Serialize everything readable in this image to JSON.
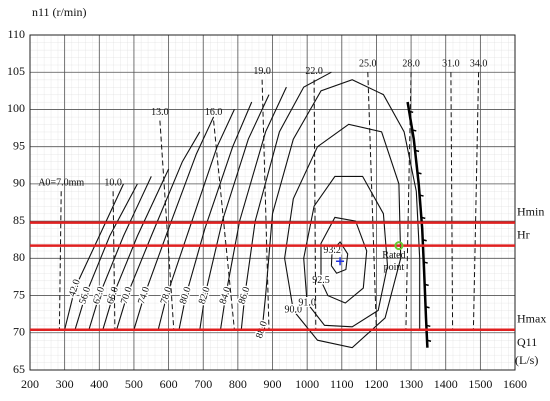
{
  "chart_data": {
    "type": "hill",
    "y_label": "n11 (r/min)",
    "x_label": [
      "Q11",
      "(L/s)"
    ],
    "xlim": [
      200,
      1600
    ],
    "xticks": [
      200,
      300,
      400,
      500,
      600,
      700,
      800,
      900,
      1000,
      1100,
      1200,
      1300,
      1400,
      1500,
      1600
    ],
    "ylim": [
      65,
      110
    ],
    "yticks": [
      65,
      70,
      75,
      80,
      85,
      90,
      95,
      100,
      105,
      110
    ],
    "grid": true,
    "head_lines": {
      "color": "#e02020",
      "lines": [
        {
          "name": "Hmin",
          "value": 84.8
        },
        {
          "name": "Hr",
          "value": 81.7
        },
        {
          "name": "Hmax",
          "value": 70.4
        }
      ]
    },
    "openings": [
      {
        "name": "A0=7.0mm",
        "x": [
          290,
          285
        ],
        "y": [
          89,
          70.4
        ]
      },
      {
        "name": "10.0",
        "x": [
          440,
          445
        ],
        "y": [
          89,
          70.4
        ]
      },
      {
        "name": "13.0",
        "x": [
          575,
          615
        ],
        "y": [
          98.5,
          70.4
        ]
      },
      {
        "name": "16.0",
        "x": [
          730,
          790
        ],
        "y": [
          98.5,
          70.4
        ]
      },
      {
        "name": "19.0",
        "x": [
          870,
          890
        ],
        "y": [
          104,
          70.4
        ]
      },
      {
        "name": "22.0",
        "x": [
          1020,
          1025
        ],
        "y": [
          104,
          70.4
        ]
      },
      {
        "name": "25.0",
        "x": [
          1175,
          1200
        ],
        "y": [
          105,
          70.4
        ]
      },
      {
        "name": "28.0",
        "x": [
          1300,
          1285
        ],
        "y": [
          105,
          70.4
        ]
      },
      {
        "name": "31.0",
        "x": [
          1415,
          1420
        ],
        "y": [
          105,
          70.4
        ]
      },
      {
        "name": "34.0",
        "x": [
          1495,
          1480
        ],
        "y": [
          105,
          70.4
        ]
      }
    ],
    "contours": [
      {
        "name": "42.0",
        "x": [
          300,
          330,
          400,
          470
        ],
        "y": [
          70.4,
          76,
          83,
          90
        ]
      },
      {
        "name": "56.0",
        "x": [
          330,
          360,
          430,
          510
        ],
        "y": [
          70.4,
          75,
          83,
          90
        ]
      },
      {
        "name": "62.0",
        "x": [
          370,
          400,
          470,
          550
        ],
        "y": [
          70.4,
          75,
          83,
          91
        ]
      },
      {
        "name": "66.0",
        "x": [
          410,
          440,
          510,
          600
        ],
        "y": [
          70.4,
          75,
          83,
          92
        ]
      },
      {
        "name": "70.0",
        "x": [
          450,
          480,
          550,
          640,
          690
        ],
        "y": [
          70.4,
          75,
          83,
          93,
          97
        ]
      },
      {
        "name": "74.0",
        "x": [
          500,
          530,
          600,
          680,
          730
        ],
        "y": [
          70.4,
          75,
          84,
          94,
          99
        ]
      },
      {
        "name": "78.0",
        "x": [
          570,
          595,
          660,
          740,
          790
        ],
        "y": [
          70.4,
          75,
          84,
          95,
          100
        ]
      },
      {
        "name": "80.0",
        "x": [
          630,
          650,
          705,
          785,
          840
        ],
        "y": [
          70.4,
          75,
          84,
          95,
          101
        ]
      },
      {
        "name": "82.0",
        "x": [
          690,
          705,
          755,
          830,
          890
        ],
        "y": [
          70.4,
          75,
          85,
          96,
          102
        ]
      },
      {
        "name": "84.0",
        "x": [
          750,
          765,
          805,
          880,
          940
        ],
        "y": [
          70.4,
          75,
          85,
          97,
          103
        ]
      },
      {
        "name": "86.0",
        "x": [
          810,
          820,
          850,
          920,
          990,
          1070
        ],
        "y": [
          70.4,
          75,
          85,
          97,
          103,
          105
        ]
      },
      {
        "name": "88.0",
        "x": [
          870,
          880,
          900,
          960,
          1040,
          1130,
          1220,
          1280,
          1315,
          1325,
          1325
        ],
        "y": [
          70.4,
          75,
          86,
          96,
          102.5,
          104,
          102,
          97,
          89,
          80,
          70.4
        ]
      },
      {
        "name": "90.0",
        "x": [
          960,
          935,
          960,
          1030,
          1120,
          1215,
          1265,
          1270,
          1225,
          1130,
          1030,
          960
        ],
        "y": [
          73,
          80,
          88,
          95,
          98,
          97,
          90,
          80,
          72,
          68,
          69,
          73
        ]
      },
      {
        "name": "91.0",
        "x": [
          1000,
          990,
          1020,
          1080,
          1160,
          1220,
          1232,
          1205,
          1130,
          1050,
          1000
        ],
        "y": [
          74,
          80,
          87,
          91,
          91,
          86,
          79,
          73,
          70.8,
          71,
          74
        ]
      },
      {
        "name": "92.5",
        "x": [
          1040,
          1040,
          1080,
          1140,
          1172,
          1162,
          1110,
          1060,
          1040
        ],
        "y": [
          77,
          82,
          85.5,
          85,
          81,
          76,
          74,
          75,
          77
        ]
      },
      {
        "name": "93.2",
        "x": [
          1070,
          1072,
          1095,
          1117,
          1112,
          1085,
          1070
        ],
        "y": [
          79,
          81,
          82.2,
          80.6,
          78.5,
          78,
          79
        ]
      }
    ],
    "power_limit": {
      "x": [
        1290,
        1308,
        1322,
        1332,
        1338,
        1343,
        1347
      ],
      "y": [
        101,
        96,
        90,
        84,
        78,
        72,
        68
      ]
    },
    "optimum_point": {
      "x": 1095,
      "y": 79.6,
      "color": "#2030e0"
    },
    "rated_point": {
      "label": [
        "Rated",
        "point"
      ],
      "x": 1265,
      "y": 81.7,
      "color": "#66cc33"
    }
  }
}
